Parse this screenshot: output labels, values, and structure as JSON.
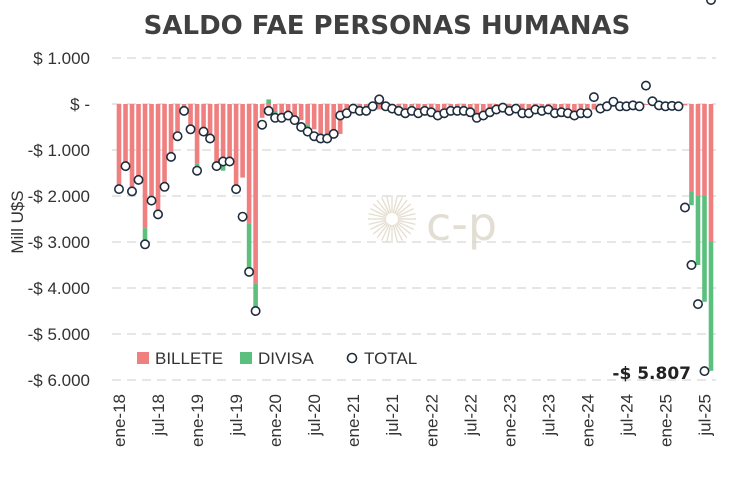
{
  "chart_data": {
    "type": "bar",
    "title": "SALDO FAE PERSONAS HUMANAS",
    "ylabel": "Mill U$S",
    "xlabel": "",
    "ylim": [
      -6100,
      1100
    ],
    "yticks": [
      1000,
      0,
      -1000,
      -2000,
      -3000,
      -4000,
      -5000,
      -6000
    ],
    "ytick_labels": [
      "$ 1.000",
      "$ -",
      "-$ 1.000",
      "-$ 2.000",
      "-$ 3.000",
      "-$ 4.000",
      "-$ 5.000",
      "-$ 6.000"
    ],
    "xtick_labels": [
      "ene-18",
      "jul-18",
      "ene-19",
      "jul-19",
      "ene-20",
      "jul-20",
      "ene-21",
      "jul-21",
      "ene-22",
      "jul-22",
      "ene-23",
      "jul-23",
      "ene-24",
      "jul-24",
      "ene-25",
      "jul-25"
    ],
    "start_month": "ene-18",
    "colors": {
      "billete": "#f07f7f",
      "divisa": "#5bbf7e",
      "total_fill": "#ffffff",
      "total_stroke": "#1f2d3d",
      "grid": "#d6d6d6",
      "title": "#404040"
    },
    "legend": [
      {
        "key": "billete",
        "label": "BILLETE"
      },
      {
        "key": "divisa",
        "label": "DIVISA"
      },
      {
        "key": "total",
        "label": "TOTAL"
      }
    ],
    "annotation": {
      "text": "-$ 5.807",
      "value": -5807
    },
    "watermark": "c-p",
    "series": [
      {
        "name": "BILLETE",
        "values": [
          -1850,
          -1350,
          -1900,
          -1650,
          -2700,
          -2150,
          -2400,
          -1850,
          -1150,
          -750,
          -200,
          -550,
          -1300,
          -650,
          -750,
          -1350,
          -1200,
          -1250,
          -1900,
          -1600,
          -2600,
          -3900,
          -300,
          -200,
          -150,
          -250,
          -200,
          -300,
          -350,
          -450,
          -550,
          -650,
          -700,
          -750,
          -650,
          -250,
          -200,
          -100,
          -150,
          -150,
          -120,
          -120,
          -120,
          -150,
          -200,
          -180,
          -200,
          -150,
          -180,
          -220,
          -250,
          -200,
          -150,
          -150,
          -180,
          -280,
          -250,
          -200,
          -150,
          -130,
          -150,
          -120,
          -200,
          -200,
          -150,
          -180,
          -150,
          -200,
          -180,
          -200,
          -220,
          -200,
          -180,
          -120,
          -100,
          -50,
          -30,
          -20,
          -20,
          -30,
          -30,
          -20,
          -20,
          -40,
          -50,
          -30,
          -30,
          -30,
          -1900,
          -2000,
          -2000,
          -3000
        ],
        "divisa": [
          0,
          0,
          0,
          0,
          -350,
          0,
          0,
          0,
          0,
          0,
          0,
          0,
          -150,
          0,
          0,
          0,
          -250,
          0,
          0,
          0,
          -1000,
          -600,
          0,
          100,
          -50,
          -50,
          -50,
          0,
          0,
          -50,
          0,
          -50,
          -50,
          0,
          0,
          0,
          0,
          0,
          0,
          0,
          0,
          0,
          0,
          0,
          0,
          0,
          0,
          0,
          0,
          0,
          0,
          0,
          0,
          0,
          0,
          0,
          0,
          0,
          0,
          0,
          0,
          0,
          0,
          0,
          0,
          0,
          0,
          0,
          0,
          0,
          0,
          0,
          0,
          0,
          0,
          0,
          0,
          0,
          0,
          0,
          0,
          0,
          0,
          0,
          0,
          0,
          0,
          0,
          -300,
          -1500,
          -2300,
          -2800
        ]
      },
      {
        "name": "DIVISA",
        "values": [
          0,
          0,
          0,
          0,
          -350,
          0,
          0,
          0,
          0,
          0,
          0,
          0,
          -150,
          0,
          0,
          0,
          -250,
          0,
          0,
          0,
          -1000,
          -600,
          0,
          100,
          -50,
          -50,
          -50,
          0,
          0,
          -50,
          0,
          -50,
          -50,
          0,
          0,
          0,
          0,
          0,
          0,
          0,
          0,
          0,
          0,
          0,
          0,
          0,
          0,
          0,
          0,
          0,
          0,
          0,
          0,
          0,
          0,
          0,
          0,
          0,
          0,
          0,
          0,
          0,
          0,
          0,
          0,
          0,
          0,
          0,
          0,
          0,
          0,
          0,
          0,
          0,
          0,
          0,
          0,
          0,
          0,
          0,
          0,
          0,
          0,
          0,
          0,
          0,
          0,
          0,
          -300,
          -1500,
          -2300,
          -2800
        ]
      },
      {
        "name": "TOTAL",
        "values": [
          -1850,
          -1350,
          -1900,
          -1650,
          -3050,
          -2100,
          -2400,
          -1800,
          -1150,
          -700,
          -150,
          -550,
          -1450,
          -600,
          -750,
          -1350,
          -1250,
          -1250,
          -1850,
          -2450,
          -3650,
          -4500,
          -450,
          -150,
          -300,
          -300,
          -250,
          -350,
          -500,
          -600,
          -700,
          -750,
          -750,
          -650,
          -250,
          -200,
          -100,
          -150,
          -150,
          -50,
          100,
          -50,
          -100,
          -150,
          -200,
          -150,
          -200,
          -150,
          -180,
          -250,
          -200,
          -150,
          -150,
          -150,
          -180,
          -300,
          -250,
          -180,
          -120,
          -80,
          -150,
          -100,
          -200,
          -200,
          -120,
          -150,
          -120,
          -200,
          -180,
          -200,
          -250,
          -200,
          -200,
          150,
          -100,
          -50,
          50,
          -50,
          -50,
          -30,
          -50,
          400,
          60,
          -30,
          -50,
          -40,
          -50,
          -2250,
          -3500,
          -4350,
          -5807
        ]
      }
    ]
  }
}
